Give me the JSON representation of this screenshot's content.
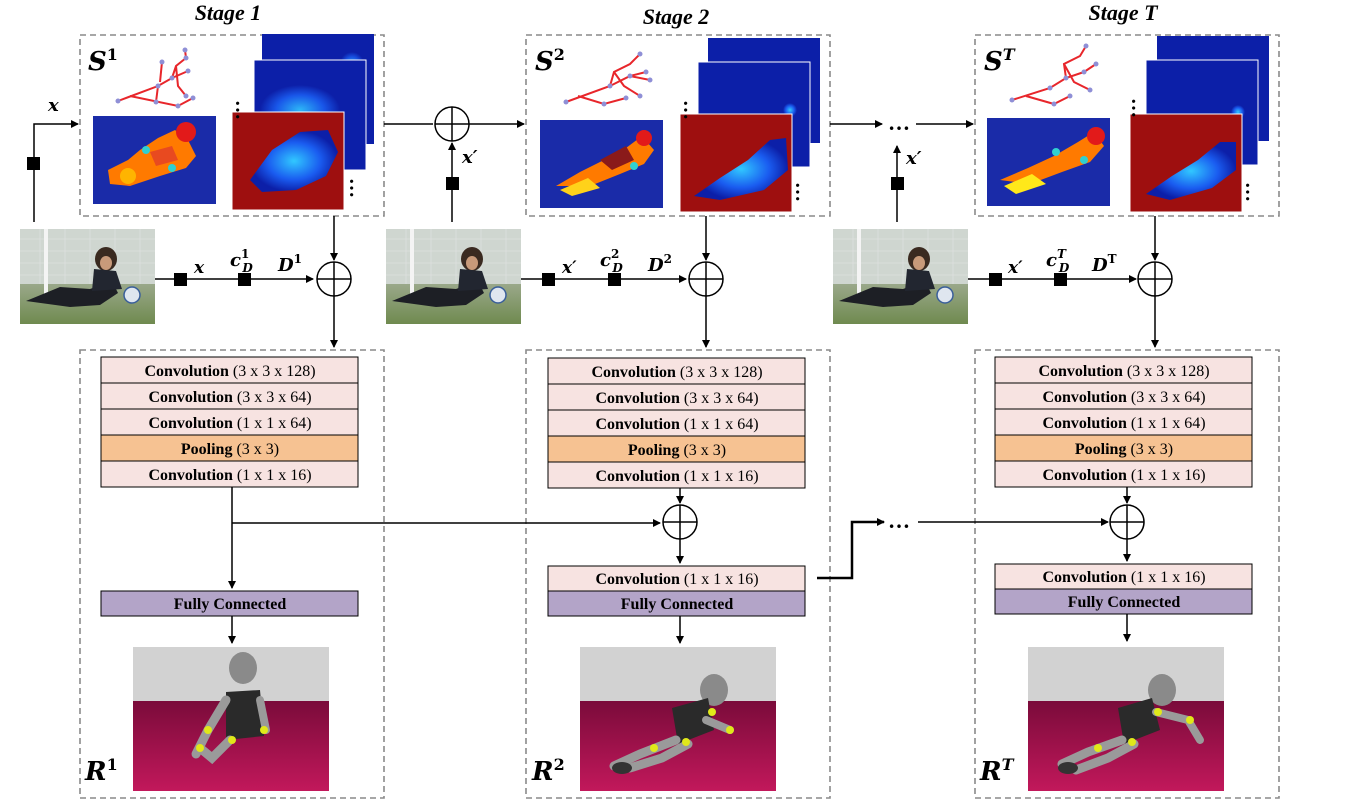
{
  "stages": [
    {
      "title": "Stage 1",
      "s_base": "S",
      "s_sup": "1",
      "input_label": "x",
      "input_top_label": "x",
      "c_base": "c",
      "c_sup": "1",
      "c_sub": "D",
      "d_base": "D",
      "d_sup": "1",
      "r_base": "R",
      "r_sup": "1",
      "layers": [
        {
          "name": "Convolution",
          "spec": "(3 x 3 x 128)",
          "kind": "conv"
        },
        {
          "name": "Convolution",
          "spec": "(3 x 3 x 64)",
          "kind": "conv"
        },
        {
          "name": "Convolution",
          "spec": "(1 x 1 x 64)",
          "kind": "conv"
        },
        {
          "name": "Pooling",
          "spec": "(3 x 3)",
          "kind": "pool"
        },
        {
          "name": "Convolution",
          "spec": "(1 x 1 x 16)",
          "kind": "conv"
        }
      ],
      "fc": "Fully Connected"
    },
    {
      "title": "Stage 2",
      "s_base": "S",
      "s_sup": "2",
      "input_label": "x′",
      "input_top_label": "x′",
      "c_base": "c",
      "c_sup": "2",
      "c_sub": "D",
      "d_base": "D",
      "d_sup": "2",
      "r_base": "R",
      "r_sup": "2",
      "layers": [
        {
          "name": "Convolution",
          "spec": "(3 x 3 x 128)",
          "kind": "conv"
        },
        {
          "name": "Convolution",
          "spec": "(3 x 3 x 64)",
          "kind": "conv"
        },
        {
          "name": "Convolution",
          "spec": "(1 x 1 x 64)",
          "kind": "conv"
        },
        {
          "name": "Pooling",
          "spec": "(3 x 3)",
          "kind": "pool"
        },
        {
          "name": "Convolution",
          "spec": "(1 x 1 x 16)",
          "kind": "conv"
        }
      ],
      "extra_conv": {
        "name": "Convolution",
        "spec": "(1 x 1 x 16)"
      },
      "fc": "Fully Connected"
    },
    {
      "title": "Stage T",
      "s_base": "S",
      "s_sup": "T",
      "input_label": "x′",
      "input_top_label": "x′",
      "c_base": "c",
      "c_sup": "T",
      "c_sub": "D",
      "d_base": "D",
      "d_sup": "T",
      "r_base": "R",
      "r_sup": "T",
      "layers": [
        {
          "name": "Convolution",
          "spec": "(3 x 3 x 128)",
          "kind": "conv"
        },
        {
          "name": "Convolution",
          "spec": "(3 x 3 x 64)",
          "kind": "conv"
        },
        {
          "name": "Convolution",
          "spec": "(1 x 1 x 64)",
          "kind": "conv"
        },
        {
          "name": "Pooling",
          "spec": "(3 x 3)",
          "kind": "pool"
        },
        {
          "name": "Convolution",
          "spec": "(1 x 1 x 16)",
          "kind": "conv"
        }
      ],
      "extra_conv": {
        "name": "Convolution",
        "spec": "(1 x 1 x 16)"
      },
      "fc": "Fully Connected"
    }
  ],
  "ellipsis": "…",
  "heatmap_dots": "⋮",
  "colors": {
    "conv_fill": "#f7e3e1",
    "pool_fill": "#f6c292",
    "fc_fill": "#b3a4c8",
    "dash": "#8a8a8a",
    "skeleton": "#e8262b",
    "joint": "#8f8fd6",
    "seg_bg": "#1a2ba8",
    "heat_bg": "#0c1fa8",
    "heat_red": "#9e0f0f",
    "render_wall": "#d2d2d2",
    "render_floor_top": "#7a0b3a",
    "render_floor_bottom": "#c2185b"
  }
}
